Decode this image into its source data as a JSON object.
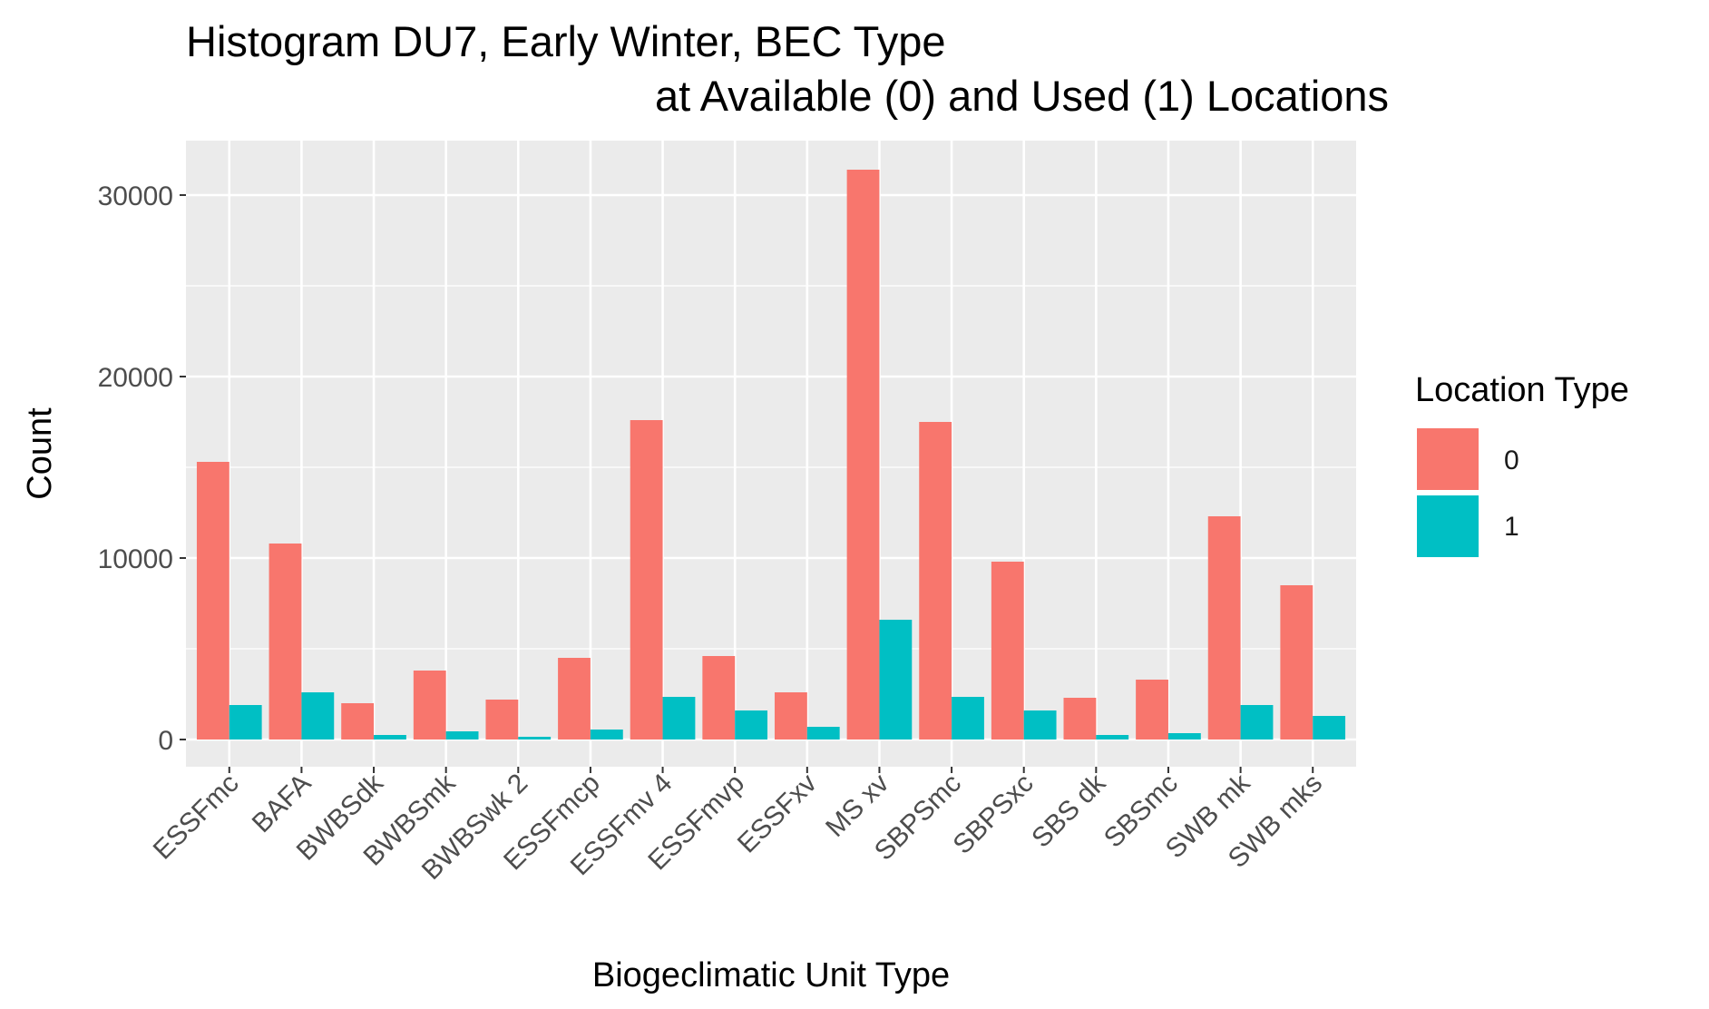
{
  "chart_data": {
    "type": "bar",
    "title_line1": "Histogram DU7, Early Winter, BEC Type",
    "title_line2": "at Available (0) and Used (1) Locations",
    "xlabel": "Biogeclimatic Unit Type",
    "ylabel": "Count",
    "ylim": [
      -1500,
      33000
    ],
    "yticks": [
      0,
      10000,
      20000,
      30000
    ],
    "ytick_labels": [
      "0",
      "10000",
      "20000",
      "30000"
    ],
    "grid": true,
    "legend_position": "right",
    "legend_title": "Location Type",
    "categories": [
      "ESSFmc",
      "BAFA",
      "BWBSdk",
      "BWBSmk",
      "BWBSwk 2",
      "ESSFmcp",
      "ESSFmv 4",
      "ESSFmvp",
      "ESSFxv",
      "MS  xv",
      "SBPSmc",
      "SBPSxc",
      "SBS dk",
      "SBSmc",
      "SWB mk",
      "SWB mks"
    ],
    "series": [
      {
        "name": "0",
        "color": "#F8766D",
        "values": [
          15300,
          10800,
          2000,
          3800,
          2200,
          4500,
          17600,
          4600,
          2600,
          31400,
          17500,
          9800,
          2300,
          3300,
          12300,
          8500
        ]
      },
      {
        "name": "1",
        "color": "#00BFC4",
        "values": [
          1900,
          2600,
          250,
          450,
          150,
          550,
          2350,
          1600,
          700,
          6600,
          2350,
          1600,
          250,
          350,
          1900,
          1300
        ]
      }
    ]
  }
}
